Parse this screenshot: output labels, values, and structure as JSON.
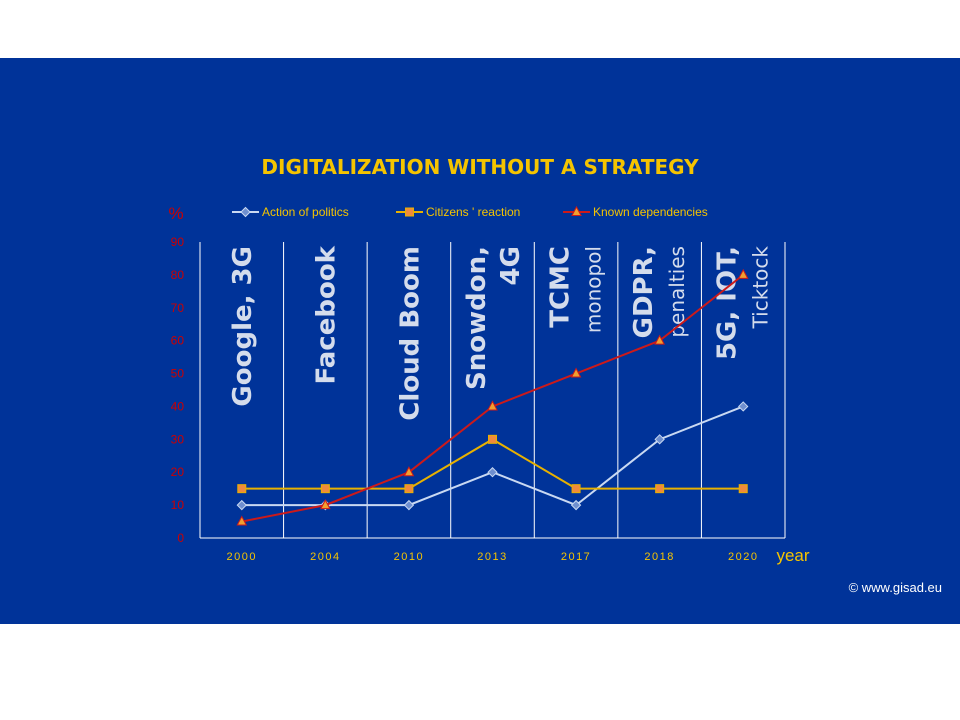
{
  "colors": {
    "background": "#003399",
    "title": "#f5c400",
    "axis_text": "#cc0000",
    "action_line": "#c9d9f2",
    "citizens_line": "#e8b100",
    "dependencies_line": "#cc1a1a",
    "event_text": "#d4dcec",
    "footer": "#ffffff"
  },
  "footer": {
    "copyright": "© www.gisad.eu"
  },
  "chart_data": {
    "type": "line",
    "title": "DIGITALIZATION WITHOUT A STRATEGY",
    "ylabel": "%",
    "xlabel": "year",
    "ylim": [
      0,
      90
    ],
    "yticks": [
      0,
      10,
      20,
      30,
      40,
      50,
      60,
      70,
      80,
      90
    ],
    "categories": [
      "2000",
      "2004",
      "2010",
      "2013",
      "2017",
      "2018",
      "2020"
    ],
    "legend_position": "top",
    "grid": "vertical lines between periods",
    "series": [
      {
        "name": "Action of politics",
        "marker": "diamond",
        "values": [
          10,
          10,
          10,
          20,
          10,
          30,
          40
        ]
      },
      {
        "name": "Citizens ' reaction",
        "marker": "square",
        "values": [
          15,
          15,
          15,
          30,
          15,
          15,
          15
        ]
      },
      {
        "name": "Known dependencies",
        "marker": "triangle",
        "values": [
          5,
          10,
          20,
          40,
          50,
          60,
          80
        ]
      }
    ],
    "annotations": [
      {
        "category": "2000",
        "lines": [
          {
            "text": "Google, 3G",
            "bold": true
          }
        ]
      },
      {
        "category": "2004",
        "lines": [
          {
            "text": "Facebook",
            "bold": true
          }
        ]
      },
      {
        "category": "2010",
        "lines": [
          {
            "text": "Cloud Boom",
            "bold": true
          }
        ]
      },
      {
        "category": "2013",
        "lines": [
          {
            "text": "Snowdon,",
            "bold": true
          },
          {
            "text": "4G",
            "bold": true
          }
        ]
      },
      {
        "category": "2017",
        "lines": [
          {
            "text": "TCMC",
            "bold": true
          },
          {
            "text": "monopol",
            "bold": false
          }
        ]
      },
      {
        "category": "2018",
        "lines": [
          {
            "text": "GDPR,",
            "bold": true
          },
          {
            "text": "penalties",
            "bold": false
          }
        ]
      },
      {
        "category": "2020",
        "lines": [
          {
            "text": "5G, IOT,",
            "bold": true
          },
          {
            "text": "Ticktock",
            "bold": false
          }
        ]
      }
    ]
  }
}
